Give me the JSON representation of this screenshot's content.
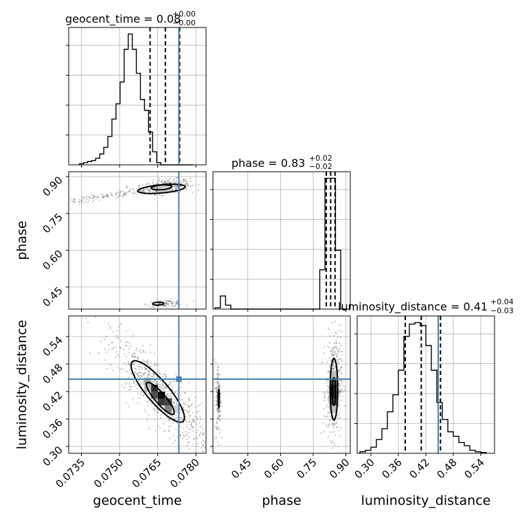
{
  "chart_data": {
    "type": "corner",
    "parameters": [
      "geocent_time",
      "phase",
      "luminosity_distance"
    ],
    "truths": {
      "geocent_time": 0.07733,
      "phase": null,
      "luminosity_distance": 0.447
    },
    "colors": {
      "truth": "#4682b4",
      "histogram": "#000000",
      "grid": "#b0b0b0"
    },
    "diagonal": [
      {
        "param": "geocent_time",
        "title": {
          "prefix": "geocent_time = ",
          "median": "0.08",
          "plus": "+0.00",
          "minus": "−0.00"
        },
        "range": [
          0.073,
          0.0784
        ],
        "bin_edges": [
          0.07342,
          0.07358,
          0.07374,
          0.0739,
          0.07406,
          0.07422,
          0.07438,
          0.07454,
          0.0747,
          0.07486,
          0.07502,
          0.07518,
          0.07534,
          0.0755,
          0.07566,
          0.07582,
          0.07598,
          0.07614,
          0.0763,
          0.07646,
          0.07662,
          0.07678,
          0.07694,
          0.0771,
          0.07726,
          0.07742,
          0.07758,
          0.07774,
          0.0779
        ],
        "counts": [
          0.5,
          1,
          1.5,
          2,
          3,
          5,
          8,
          13,
          21,
          28,
          38,
          53,
          60,
          53,
          42,
          30,
          25,
          15,
          6,
          1,
          0,
          0,
          0,
          0,
          0,
          0,
          0,
          0
        ],
        "quantiles": [
          0.0762,
          0.0768,
          0.07736
        ]
      },
      {
        "param": "phase",
        "title": {
          "prefix": "phase = ",
          "median": "0.83",
          "plus": "+0.02",
          "minus": "−0.02"
        },
        "range": [
          0.29,
          0.92
        ],
        "bin_edges": [
          0.3,
          0.324,
          0.348,
          0.372,
          0.396,
          0.42,
          0.444,
          0.468,
          0.492,
          0.516,
          0.54,
          0.564,
          0.588,
          0.612,
          0.636,
          0.66,
          0.684,
          0.708,
          0.732,
          0.756,
          0.78,
          0.804,
          0.828,
          0.852,
          0.876,
          0.9
        ],
        "counts": [
          1,
          10,
          3,
          0,
          0,
          0,
          0,
          0,
          0,
          0,
          0,
          0,
          0,
          0,
          0,
          0,
          0,
          0,
          0,
          0,
          30,
          100,
          100,
          45,
          0
        ],
        "quantiles": [
          0.81,
          0.83,
          0.85
        ]
      },
      {
        "param": "luminosity_distance",
        "title": {
          "prefix": "luminosity_distance = ",
          "median": "0.41",
          "plus": "+0.04",
          "minus": "−0.03"
        },
        "range": [
          0.27,
          0.57
        ],
        "bin_edges": [
          0.276,
          0.288,
          0.3,
          0.312,
          0.324,
          0.336,
          0.348,
          0.36,
          0.372,
          0.384,
          0.396,
          0.408,
          0.42,
          0.432,
          0.444,
          0.456,
          0.468,
          0.48,
          0.492,
          0.504,
          0.516,
          0.528,
          0.54,
          0.552
        ],
        "counts": [
          1,
          2,
          4,
          9,
          16,
          27,
          38,
          54,
          76,
          84,
          85,
          83,
          70,
          54,
          33,
          22,
          14,
          11,
          7,
          5,
          2,
          1,
          0.5
        ],
        "quantiles": [
          0.375,
          0.41,
          0.452
        ]
      }
    ],
    "panels_2d": [
      {
        "x": "geocent_time",
        "y": "phase",
        "xlim": [
          0.073,
          0.0784
        ],
        "ylim": [
          0.36,
          0.92
        ]
      },
      {
        "x": "geocent_time",
        "y": "luminosity_distance",
        "xlim": [
          0.073,
          0.0784
        ],
        "ylim": [
          0.285,
          0.585
        ]
      },
      {
        "x": "phase",
        "y": "luminosity_distance",
        "xlim": [
          0.29,
          0.92
        ],
        "ylim": [
          0.285,
          0.585
        ]
      }
    ],
    "ticks": {
      "geocent_time": {
        "values": [
          0.0735,
          0.075,
          0.0765,
          0.078
        ],
        "labels": [
          "0.0735",
          "0.0750",
          "0.0765",
          "0.0780"
        ]
      },
      "phase_y": {
        "values": [
          0.45,
          0.6,
          0.75,
          0.9
        ],
        "labels": [
          "0.45",
          "0.60",
          "0.75",
          "0.90"
        ]
      },
      "phase_x": {
        "values": [
          0.45,
          0.6,
          0.75,
          0.9
        ],
        "labels": [
          "0.45",
          "0.60",
          "0.75",
          "0.90"
        ]
      },
      "luminosity_distance": {
        "values": [
          0.3,
          0.36,
          0.42,
          0.48,
          0.54
        ],
        "labels": [
          "0.30",
          "0.36",
          "0.42",
          "0.48",
          "0.54"
        ]
      }
    },
    "xlabels": [
      "geocent_time",
      "phase",
      "luminosity_distance"
    ],
    "ylabels": [
      "phase",
      "luminosity_distance"
    ]
  }
}
